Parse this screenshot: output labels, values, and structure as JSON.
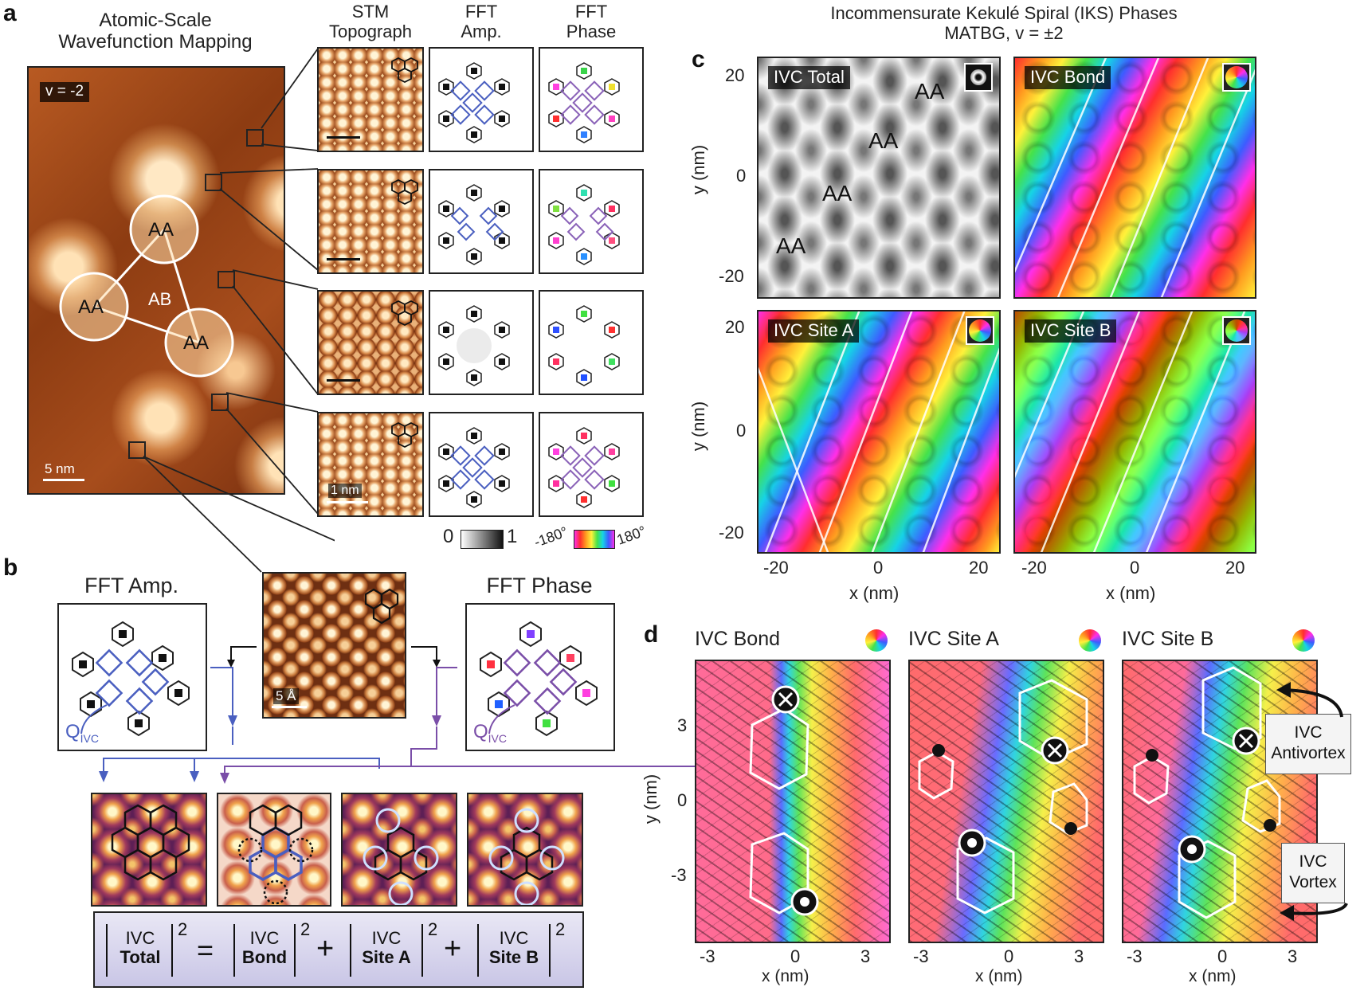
{
  "panels": {
    "a": "a",
    "b": "b",
    "c": "c",
    "d": "d"
  },
  "panel_a": {
    "title_line1": "Atomic-Scale",
    "title_line2": "Wavefunction Mapping",
    "filling_label": "v = -2",
    "scale_main": "5 nm",
    "scale_small": "1 nm",
    "aa_labels": [
      "AA",
      "AA",
      "AA"
    ],
    "ab_label": "AB",
    "col_headers": [
      {
        "line1": "STM",
        "line2": "Topograph"
      },
      {
        "line1": "FFT",
        "line2": "Amp."
      },
      {
        "line1": "FFT",
        "line2": "Phase"
      }
    ],
    "amp_scale": {
      "min": "0",
      "max": "1"
    },
    "phase_scale": {
      "min": "-180°",
      "max": "180°"
    }
  },
  "panel_b": {
    "fft_amp_title": "FFT Amp.",
    "fft_phase_title": "FFT Phase",
    "q_label": "Q",
    "q_sub": "IVC",
    "scale": "5 Å",
    "formula": {
      "top": "IVC",
      "total": "Total",
      "bond": "Bond",
      "site_a": "Site A",
      "site_b": "Site B",
      "power": "2",
      "eq": "=",
      "plus": "+"
    }
  },
  "panel_c": {
    "title_line1": "Incommensurate Kekulé Spiral (IKS) Phases",
    "title_line2": "MATBG, v = ±2",
    "maps": [
      "IVC Total",
      "IVC Bond",
      "IVC Site A",
      "IVC Site B"
    ],
    "aa_labels": [
      "AA",
      "AA",
      "AA",
      "AA"
    ],
    "y_ticks": [
      "20",
      "0",
      "-20"
    ],
    "x_ticks": [
      "-20",
      "0",
      "20"
    ],
    "xlabel": "x (nm)",
    "ylabel": "y (nm)"
  },
  "panel_d": {
    "titles": [
      "IVC Bond",
      "IVC Site A",
      "IVC Site B"
    ],
    "y_ticks": [
      "3",
      "0",
      "-3"
    ],
    "x_ticks": [
      "-3",
      "0",
      "3"
    ],
    "xlabel": "x (nm)",
    "ylabel": "y (nm)",
    "antivortex_label_line1": "IVC",
    "antivortex_label_line2": "Antivortex",
    "vortex_label_line1": "IVC",
    "vortex_label_line2": "Vortex"
  }
}
